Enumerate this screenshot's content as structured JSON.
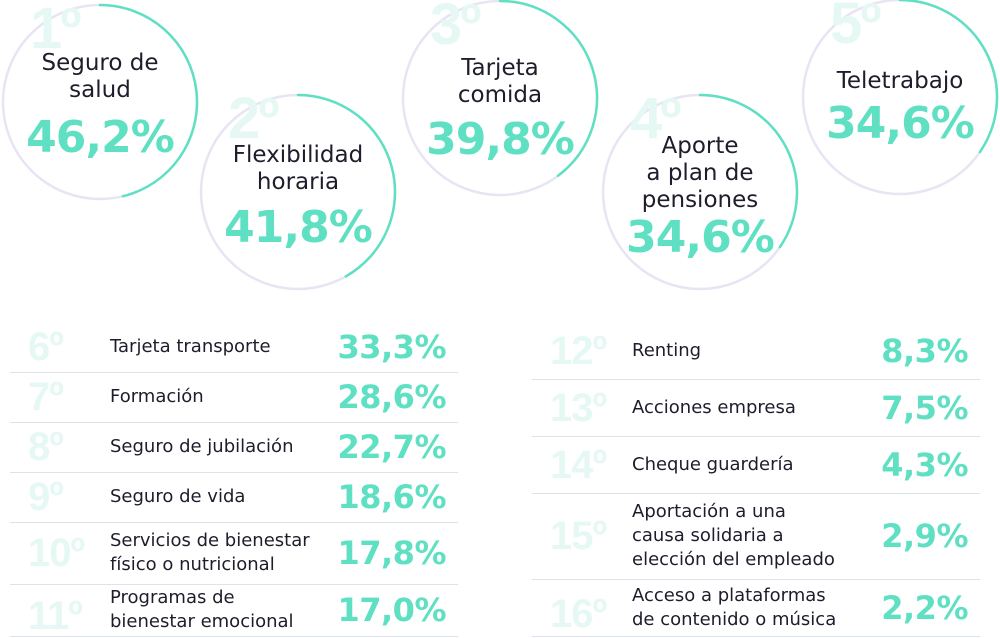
{
  "chart_data": {
    "type": "table",
    "title": "",
    "colors": {
      "accent": "#5fe0c3",
      "ring_track": "#e7e5f4",
      "rank_tint": "#e6f8f4",
      "divider": "#dde3ea"
    },
    "top5": [
      {
        "rank": "1º",
        "label": "Seguro de\nsalud",
        "value": "46,2%",
        "percent": 46.2
      },
      {
        "rank": "2º",
        "label": "Flexibilidad\nhoraria",
        "value": "41,8%",
        "percent": 41.8
      },
      {
        "rank": "3º",
        "label": "Tarjeta\ncomida",
        "value": "39,8%",
        "percent": 39.8
      },
      {
        "rank": "4º",
        "label": "Aporte\na plan de\npensiones",
        "value": "34,6%",
        "percent": 34.6
      },
      {
        "rank": "5º",
        "label": "Teletrabajo",
        "value": "34,6%",
        "percent": 34.6
      }
    ],
    "list_left": [
      {
        "rank": "6º",
        "label": "Tarjeta transporte",
        "value": "33,3%"
      },
      {
        "rank": "7º",
        "label": "Formación",
        "value": "28,6%"
      },
      {
        "rank": "8º",
        "label": "Seguro de jubilación",
        "value": "22,7%"
      },
      {
        "rank": "9º",
        "label": "Seguro de vida",
        "value": "18,6%"
      },
      {
        "rank": "10º",
        "label": "Servicios de bienestar\nfísico o nutricional",
        "value": "17,8%"
      },
      {
        "rank": "11º",
        "label": "Programas de\nbienestar emocional",
        "value": "17,0%"
      }
    ],
    "list_right": [
      {
        "rank": "12º",
        "label": "Renting",
        "value": "8,3%"
      },
      {
        "rank": "13º",
        "label": "Acciones empresa",
        "value": "7,5%"
      },
      {
        "rank": "14º",
        "label": "Cheque guardería",
        "value": "4,3%"
      },
      {
        "rank": "15º",
        "label": "Aportación a una\ncausa solidaria a\nelección del empleado",
        "value": "2,9%"
      },
      {
        "rank": "16º",
        "label": "Acceso a plataformas\nde contenido o música",
        "value": "2,2%"
      }
    ]
  }
}
